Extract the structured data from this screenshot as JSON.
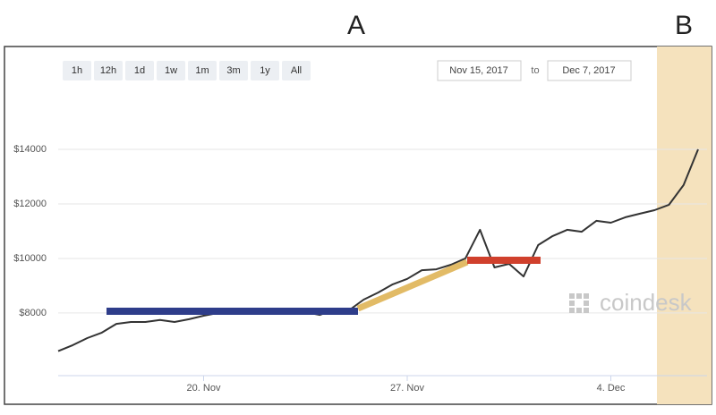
{
  "ui": {
    "range_buttons": [
      "1h",
      "12h",
      "1d",
      "1w",
      "1m",
      "3m",
      "1y",
      "All"
    ],
    "date_from": "Nov 15, 2017",
    "date_to_label": "to",
    "date_to": "Dec 7, 2017",
    "watermark": "coindesk",
    "annotations": [
      "A",
      "B"
    ]
  },
  "chart_data": {
    "type": "line",
    "color": "#333333",
    "grid": true,
    "x": [
      "2017-11-15T00:00",
      "2017-11-15T12:00",
      "2017-11-16T00:00",
      "2017-11-16T12:00",
      "2017-11-17T00:00",
      "2017-11-17T12:00",
      "2017-11-18T00:00",
      "2017-11-18T12:00",
      "2017-11-19T00:00",
      "2017-11-19T12:00",
      "2017-11-20T00:00",
      "2017-11-20T12:00",
      "2017-11-21T00:00",
      "2017-11-21T12:00",
      "2017-11-22T00:00",
      "2017-11-22T12:00",
      "2017-11-23T00:00",
      "2017-11-23T12:00",
      "2017-11-24T00:00",
      "2017-11-24T12:00",
      "2017-11-25T00:00",
      "2017-11-25T12:00",
      "2017-11-26T00:00",
      "2017-11-26T12:00",
      "2017-11-27T00:00",
      "2017-11-27T12:00",
      "2017-11-28T00:00",
      "2017-11-28T12:00",
      "2017-11-29T00:00",
      "2017-11-29T12:00",
      "2017-11-30T00:00",
      "2017-11-30T12:00",
      "2017-12-01T00:00",
      "2017-12-01T12:00",
      "2017-12-02T00:00",
      "2017-12-02T12:00",
      "2017-12-03T00:00",
      "2017-12-03T12:00",
      "2017-12-04T00:00",
      "2017-12-04T12:00",
      "2017-12-05T00:00",
      "2017-12-05T12:00",
      "2017-12-06T00:00",
      "2017-12-06T12:00",
      "2017-12-07T00:00"
    ],
    "values": [
      6600,
      6820,
      7080,
      7280,
      7600,
      7670,
      7670,
      7740,
      7670,
      7770,
      7900,
      8000,
      8000,
      8100,
      8000,
      8070,
      8100,
      8030,
      7930,
      8130,
      8100,
      8490,
      8750,
      9050,
      9250,
      9570,
      9600,
      9770,
      10000,
      11050,
      9670,
      9800,
      9340,
      10490,
      10820,
      11050,
      10980,
      11380,
      11310,
      11510,
      11640,
      11770,
      11970,
      12690,
      14000
    ],
    "xlim": [
      "2017-11-15T00:00",
      "2017-12-07T00:00"
    ],
    "xticks": [
      {
        "value": "2017-11-20T00:00",
        "label": "20. Nov"
      },
      {
        "value": "2017-11-27T00:00",
        "label": "27. Nov"
      },
      {
        "value": "2017-12-04T00:00",
        "label": "4. Dec"
      }
    ],
    "ylim": [
      5800,
      16000
    ],
    "yticks": [
      {
        "value": 8000,
        "label": "$8000"
      },
      {
        "value": 10000,
        "label": "$10000"
      },
      {
        "value": 12000,
        "label": "$12000"
      },
      {
        "value": 14000,
        "label": "$14000"
      }
    ]
  }
}
